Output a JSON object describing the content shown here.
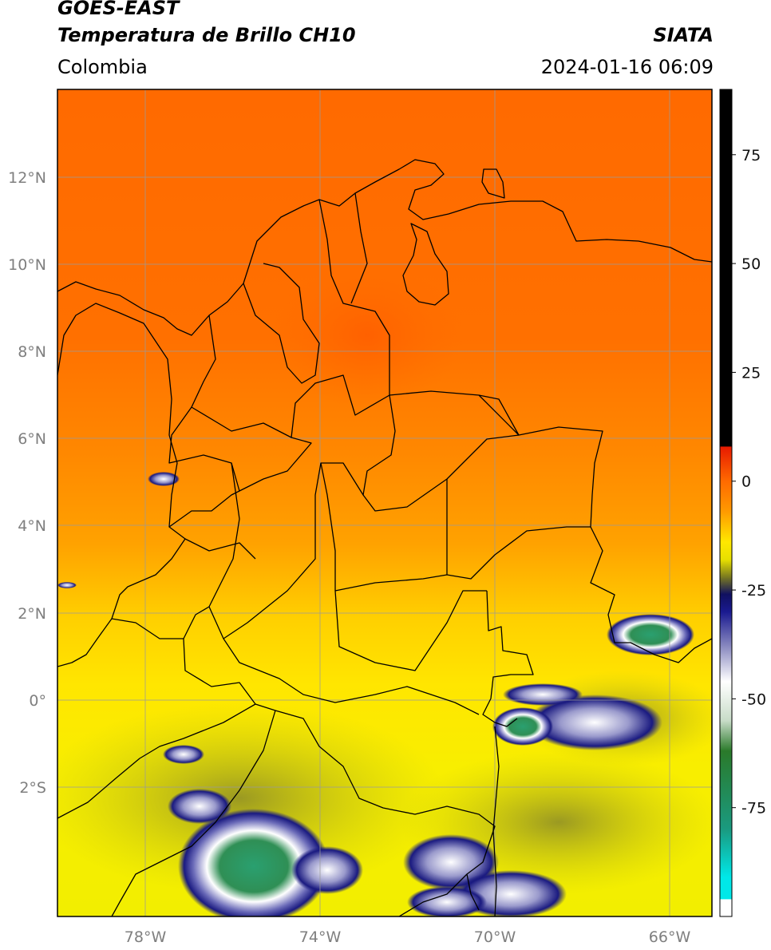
{
  "header": {
    "title_line1": "GOES-EAST",
    "title_line2": "Temperatura de Brillo CH10",
    "region": "Colombia",
    "source": "SIATA",
    "datetime": "2024-01-16 06:09"
  },
  "map": {
    "lon_range": [
      -80,
      -65
    ],
    "lat_range": [
      -5,
      14
    ],
    "x_ticks": [
      {
        "lon": -78,
        "label": "78°W"
      },
      {
        "lon": -74,
        "label": "74°W"
      },
      {
        "lon": -70,
        "label": "70°W"
      },
      {
        "lon": -66,
        "label": "66°W"
      }
    ],
    "y_ticks": [
      {
        "lat": 12,
        "label": "12°N"
      },
      {
        "lat": 10,
        "label": "10°N"
      },
      {
        "lat": 8,
        "label": "8°N"
      },
      {
        "lat": 6,
        "label": "6°N"
      },
      {
        "lat": 4,
        "label": "4°N"
      },
      {
        "lat": 2,
        "label": "2°N"
      },
      {
        "lat": 0,
        "label": "0°"
      },
      {
        "lat": -2,
        "label": "2°S"
      }
    ],
    "gridlines": true
  },
  "colorbar": {
    "range": [
      -100,
      90
    ],
    "ticks": [
      {
        "value": 75,
        "label": "75"
      },
      {
        "value": 50,
        "label": "50"
      },
      {
        "value": 25,
        "label": "25"
      },
      {
        "value": 0,
        "label": "0"
      },
      {
        "value": -25,
        "label": "-25"
      },
      {
        "value": -50,
        "label": "-50"
      },
      {
        "value": -75,
        "label": "-75"
      }
    ],
    "stops": [
      {
        "value": 90,
        "color": "#000000"
      },
      {
        "value": 8,
        "color": "#000000"
      },
      {
        "value": 7.9,
        "color": "#e81a00"
      },
      {
        "value": 0,
        "color": "#ff6a00"
      },
      {
        "value": -7,
        "color": "#ff9a00"
      },
      {
        "value": -14,
        "color": "#ffe800"
      },
      {
        "value": -18,
        "color": "#e8e000"
      },
      {
        "value": -22,
        "color": "#7a7a20"
      },
      {
        "value": -26,
        "color": "#101060"
      },
      {
        "value": -30,
        "color": "#1a1a90"
      },
      {
        "value": -38,
        "color": "#8a8ac0"
      },
      {
        "value": -46,
        "color": "#ffffff"
      },
      {
        "value": -55,
        "color": "#c8dcc8"
      },
      {
        "value": -62,
        "color": "#2a7a2a"
      },
      {
        "value": -80,
        "color": "#1a9a80"
      },
      {
        "value": -91,
        "color": "#00e8e8"
      },
      {
        "value": -96,
        "color": "#00e8e8"
      },
      {
        "value": -96.1,
        "color": "#ffffff"
      },
      {
        "value": -100,
        "color": "#ffffff"
      }
    ]
  }
}
